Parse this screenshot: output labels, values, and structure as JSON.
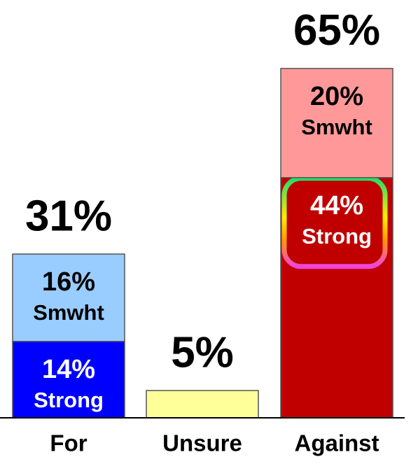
{
  "chart_data": {
    "type": "stacked_bar",
    "categories": [
      "For",
      "Unsure",
      "Against"
    ],
    "series": [
      {
        "name": "Strong",
        "values": [
          14,
          null,
          44
        ],
        "value_labels": [
          "14%",
          null,
          "44%"
        ],
        "colors": [
          "#0000ff",
          null,
          "#c00000"
        ],
        "label_color": "#ffffff"
      },
      {
        "name": "Smwht",
        "values": [
          16,
          null,
          20
        ],
        "value_labels": [
          "16%",
          null,
          "20%"
        ],
        "colors": [
          "#99ccff",
          null,
          "#ff9999"
        ],
        "label_color": "#000000"
      },
      {
        "values": [
          null,
          5,
          null
        ],
        "colors": [
          null,
          "#ffff99",
          null
        ]
      }
    ],
    "totals": {
      "values": [
        31,
        5,
        65
      ],
      "value_labels": [
        "31%",
        "5%",
        "65%"
      ]
    }
  }
}
